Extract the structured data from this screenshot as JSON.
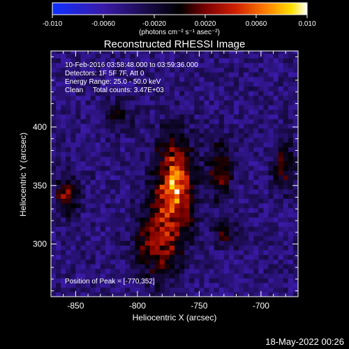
{
  "colorbar": {
    "ticks": [
      "-0.010",
      "-0.0060",
      "-0.0020",
      "0.0020",
      "0.0060",
      "0.010"
    ],
    "unit_label": "(photons cm⁻² s⁻¹ asec⁻²)",
    "colors": [
      "#1030ff",
      "#3a1aa8",
      "#000000",
      "#7a0000",
      "#d02000",
      "#ff8000",
      "#ffe000",
      "#ffffff"
    ]
  },
  "chart_data": {
    "type": "heatmap",
    "title": "Reconstructed RHESSI Image",
    "xlabel": "Heliocentric X (arcsec)",
    "ylabel": "Heliocentric Y (arcsec)",
    "xlim": [
      -870,
      -670
    ],
    "ylim": [
      255,
      465
    ],
    "x_ticks": [
      -850,
      -800,
      -750,
      -700
    ],
    "y_ticks": [
      300,
      350,
      400
    ],
    "value_range": [
      -0.01,
      0.01
    ],
    "peak": [
      -770,
      352
    ],
    "sources": [
      {
        "x": -770,
        "y": 352,
        "sx": 11,
        "sy": 28,
        "amp": 0.01
      },
      {
        "x": -783,
        "y": 300,
        "sx": 13,
        "sy": 22,
        "amp": 0.0062
      },
      {
        "x": -733,
        "y": 363,
        "sx": 7,
        "sy": 18,
        "amp": 0.0055
      },
      {
        "x": -857,
        "y": 342,
        "sx": 6,
        "sy": 12,
        "amp": 0.0058
      },
      {
        "x": -682,
        "y": 368,
        "sx": 6,
        "sy": 16,
        "amp": 0.005
      },
      {
        "x": -730,
        "y": 310,
        "sx": 7,
        "sy": 8,
        "amp": 0.004
      },
      {
        "x": -815,
        "y": 410,
        "sx": 9,
        "sy": 9,
        "amp": 0.003
      }
    ],
    "annotations": {
      "time": "10-Feb-2016 03:58:48.000 to 03:59:36.000",
      "detectors": "Detectors: 1F 5F 7F, Att 0",
      "energy": "Energy Range: 25.0 - 50.0 keV",
      "clean": "Clean     Total counts: 3.47E+03",
      "peak_label": "Position of Peak = [-770,352]"
    }
  },
  "footer": {
    "date": "18-May-2022 00:26"
  }
}
